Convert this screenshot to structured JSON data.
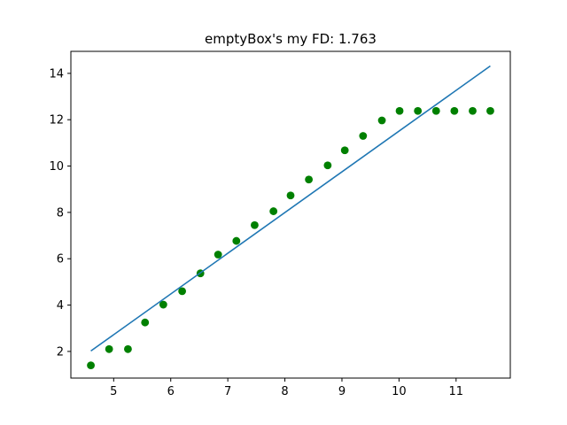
{
  "chart_data": {
    "type": "scatter",
    "title": "emptyBox's my FD: 1.763",
    "xlabel": "",
    "ylabel": "",
    "xlim": [
      4.25,
      11.95
    ],
    "ylim": [
      0.85,
      14.95
    ],
    "x_ticks": [
      5,
      6,
      7,
      8,
      9,
      10,
      11
    ],
    "y_ticks": [
      2,
      4,
      6,
      8,
      10,
      12,
      14
    ],
    "grid": false,
    "series": [
      {
        "kind": "scatter",
        "color": "#008000",
        "marker": "circle",
        "points": [
          [
            4.6,
            1.4
          ],
          [
            4.92,
            2.1
          ],
          [
            5.25,
            2.1
          ],
          [
            5.55,
            3.25
          ],
          [
            5.87,
            4.02
          ],
          [
            6.2,
            4.6
          ],
          [
            6.52,
            5.37
          ],
          [
            6.83,
            6.18
          ],
          [
            7.15,
            6.77
          ],
          [
            7.47,
            7.45
          ],
          [
            7.8,
            8.05
          ],
          [
            8.1,
            8.73
          ],
          [
            8.42,
            9.42
          ],
          [
            8.75,
            10.03
          ],
          [
            9.05,
            10.68
          ],
          [
            9.37,
            11.3
          ],
          [
            9.7,
            11.97
          ],
          [
            10.01,
            12.38
          ],
          [
            10.33,
            12.38
          ],
          [
            10.65,
            12.38
          ],
          [
            10.97,
            12.38
          ],
          [
            11.29,
            12.38
          ],
          [
            11.6,
            12.38
          ]
        ]
      },
      {
        "kind": "line",
        "color": "#1f77b4",
        "points": [
          [
            4.6,
            2.02
          ],
          [
            11.6,
            14.32
          ]
        ]
      }
    ]
  }
}
